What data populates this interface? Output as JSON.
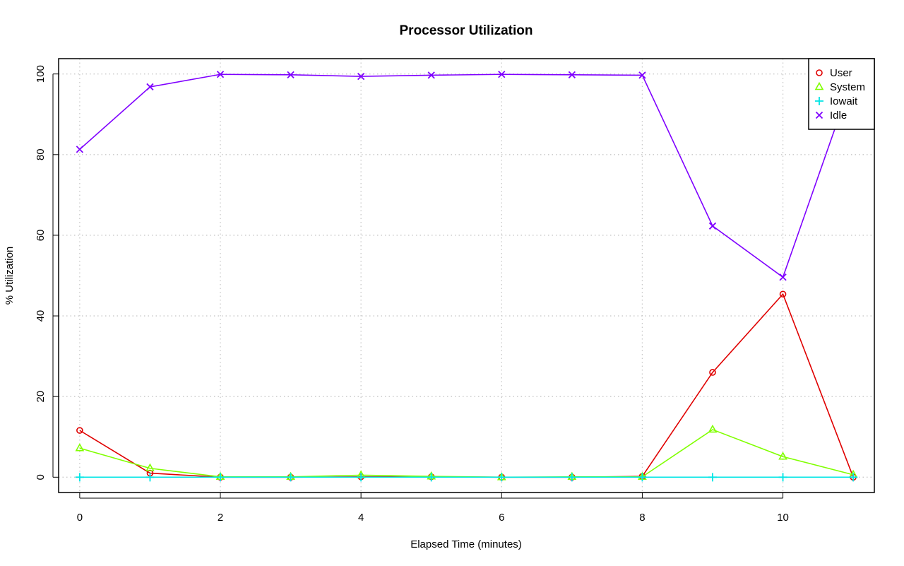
{
  "chart_data": {
    "type": "line",
    "title": "Processor Utilization",
    "xlabel": "Elapsed Time (minutes)",
    "ylabel": "% Utilization",
    "x": [
      0,
      1,
      2,
      3,
      4,
      5,
      6,
      7,
      8,
      9,
      10,
      11
    ],
    "xlim": [
      -0.3,
      11.3
    ],
    "ylim": [
      -3.8,
      103.8
    ],
    "xticks": [
      0,
      2,
      4,
      6,
      8,
      10
    ],
    "yticks": [
      0,
      20,
      40,
      60,
      80,
      100
    ],
    "grid": true,
    "legend_position": "top-right",
    "series": [
      {
        "name": "User",
        "color": "#e00000",
        "marker": "circle",
        "values": [
          11.6,
          1.0,
          0.0,
          0.0,
          0.1,
          0.1,
          0.0,
          0.0,
          0.2,
          26.0,
          45.4,
          0.0
        ]
      },
      {
        "name": "System",
        "color": "#80ff00",
        "marker": "triangle",
        "values": [
          7.2,
          2.2,
          0.1,
          0.1,
          0.5,
          0.2,
          0.0,
          0.1,
          0.1,
          11.8,
          5.1,
          0.6
        ]
      },
      {
        "name": "Iowait",
        "color": "#00e5e5",
        "marker": "plus",
        "values": [
          0.0,
          0.0,
          0.0,
          0.0,
          0.0,
          0.0,
          0.0,
          0.0,
          0.0,
          0.0,
          0.0,
          0.0
        ]
      },
      {
        "name": "Idle",
        "color": "#7f00ff",
        "marker": "cross",
        "values": [
          81.3,
          96.8,
          99.9,
          99.8,
          99.4,
          99.7,
          99.9,
          99.8,
          99.7,
          62.3,
          49.6,
          99.4
        ]
      }
    ]
  }
}
